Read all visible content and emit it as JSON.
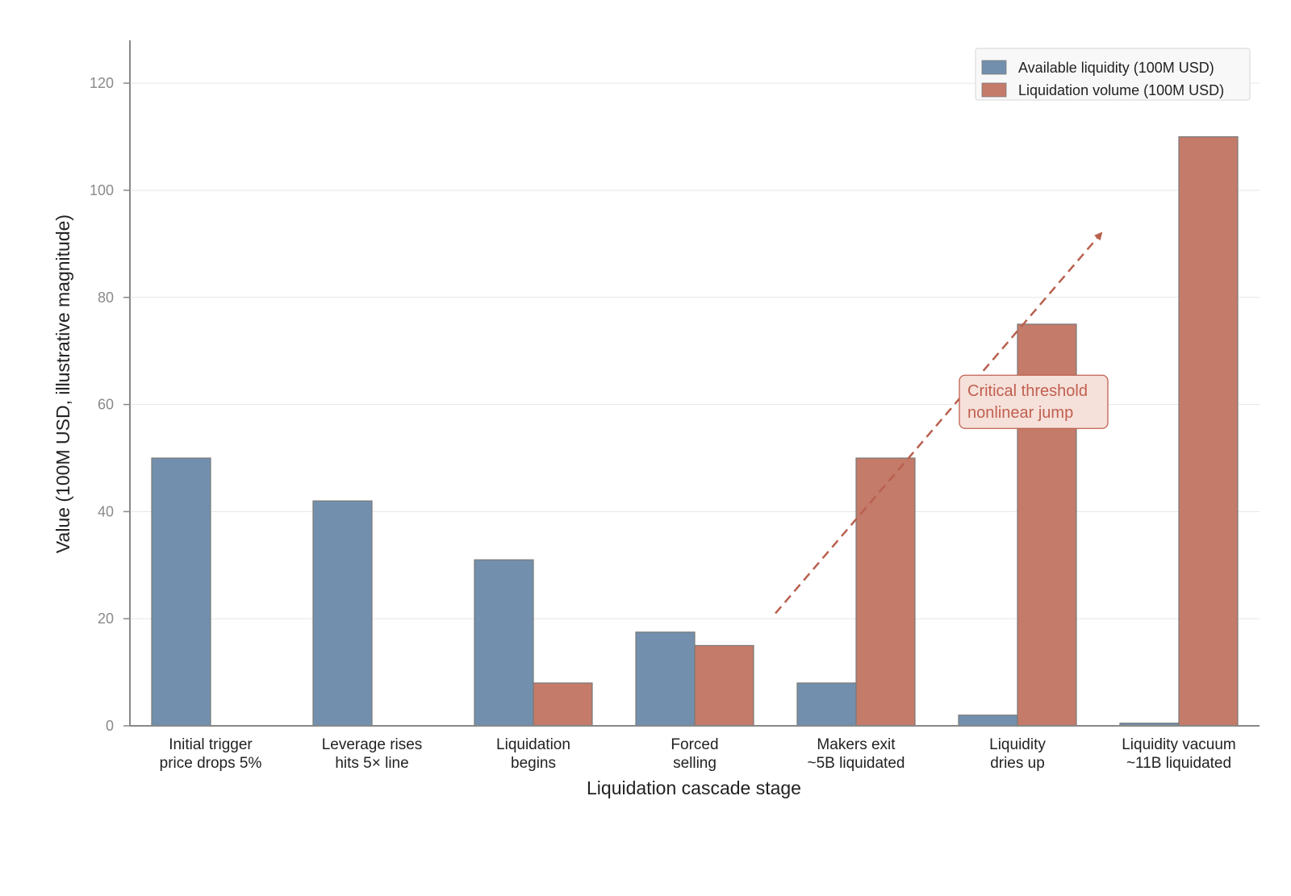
{
  "chart_data": {
    "type": "bar",
    "title": "",
    "xlabel": "Liquidation cascade stage",
    "ylabel": "Value (100M USD, illustrative magnitude)",
    "ylim": [
      0,
      128
    ],
    "yticks": [
      0,
      20,
      40,
      60,
      80,
      100,
      120
    ],
    "grid": "horizontal",
    "legend_position": "top-right",
    "categories": [
      [
        "Initial trigger",
        "price drops 5%"
      ],
      [
        "Leverage rises",
        "hits 5× line"
      ],
      [
        "Liquidation",
        "begins"
      ],
      [
        "Forced",
        "selling"
      ],
      [
        "Makers exit",
        "~5B liquidated"
      ],
      [
        "Liquidity",
        "dries up"
      ],
      [
        "Liquidity vacuum",
        "~11B liquidated"
      ]
    ],
    "series": [
      {
        "name": "Available liquidity (100M USD)",
        "color": "#7290ad",
        "values": [
          50,
          42,
          31,
          17.5,
          8,
          2,
          0.5
        ]
      },
      {
        "name": "Liquidation volume (100M USD)",
        "color": "#c47b69",
        "values": [
          0,
          0,
          8,
          15,
          50,
          75,
          110
        ]
      }
    ],
    "annotation": {
      "lines": [
        "Critical threshold",
        "nonlinear jump"
      ],
      "text_color": "#c0604f",
      "box_fill": "#f6e0da",
      "box_stroke": "#c0604f",
      "arrow": {
        "style": "dashed",
        "color": "#b8604e",
        "from": {
          "x": 3.5,
          "y": 21
        },
        "to": {
          "x": 5.52,
          "y": 92
        }
      },
      "label_anchor": {
        "x": 5.1,
        "y": 60.5
      }
    }
  }
}
